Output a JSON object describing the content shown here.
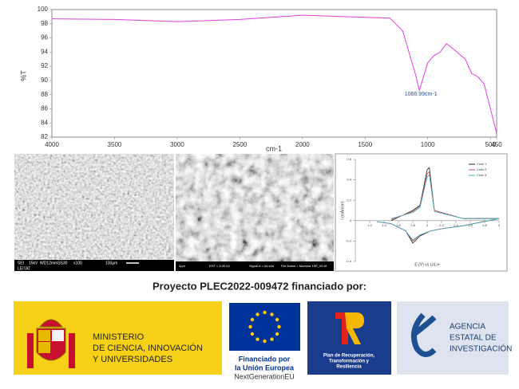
{
  "chart_data": [
    {
      "type": "line",
      "xlabel": "cm-1",
      "ylabel": "%T",
      "annotation": "1066.99cm-1",
      "x": [
        4000,
        3500,
        3000,
        2500,
        2000,
        1500,
        1300,
        1200,
        1100,
        1067,
        1000,
        950,
        900,
        850,
        800,
        700,
        650,
        600,
        550,
        500,
        450
      ],
      "series": [
        {
          "color": "#e040e0",
          "values": [
            98.7,
            98.6,
            98.3,
            98.6,
            99.2,
            98.9,
            98.8,
            97,
            91,
            88.6,
            92.5,
            93.5,
            94,
            95.2,
            94.5,
            93,
            91,
            90.5,
            89.5,
            86,
            82.5
          ]
        }
      ],
      "xlim": [
        4000,
        450
      ],
      "xticks": [
        4000,
        3500,
        3000,
        2500,
        2000,
        1500,
        1000,
        500,
        450
      ],
      "ylim": [
        82,
        100
      ],
      "yticks": [
        82,
        84,
        86,
        88,
        90,
        92,
        94,
        96,
        98,
        100
      ]
    },
    {
      "type": "line",
      "xlabel": "E (V) vs Li/Li+",
      "ylabel": "I (mA/cm²)",
      "x": [
        1.5,
        1.8,
        1.9,
        2.0,
        2.03,
        2.1,
        2.5,
        3.0,
        2.5,
        2.2,
        2.05,
        1.9,
        1.8,
        1.7,
        1.5,
        1.3
      ],
      "series": [
        {
          "name": "Ciclo 1",
          "color": "#222222",
          "values": [
            0,
            0.1,
            0.15,
            0.5,
            0.52,
            0.1,
            0.02,
            0.02,
            -0.05,
            -0.08,
            -0.1,
            -0.15,
            -0.22,
            -0.1,
            -0.03,
            -0.01
          ]
        },
        {
          "name": "Ciclo 2",
          "color": "#c0504d",
          "values": [
            0.01,
            0.09,
            0.14,
            0.46,
            0.48,
            0.1,
            0.02,
            0.02,
            -0.05,
            -0.08,
            -0.1,
            -0.14,
            -0.2,
            -0.1,
            -0.03,
            -0.01
          ]
        },
        {
          "name": "Ciclo 3",
          "color": "#4bacc6",
          "values": [
            0.02,
            0.08,
            0.13,
            0.43,
            0.45,
            0.09,
            0.02,
            0.02,
            -0.05,
            -0.08,
            -0.1,
            -0.14,
            -0.19,
            -0.1,
            -0.03,
            -0.01
          ]
        }
      ],
      "xlim": [
        1,
        3
      ],
      "xticks": [
        1.2,
        1.4,
        1.6,
        1.8,
        2,
        2.2,
        2.4,
        2.6,
        2.8,
        3
      ],
      "ylim": [
        -0.4,
        0.6
      ],
      "yticks": [
        -0.4,
        -0.2,
        0,
        0.2,
        0.4,
        0.6
      ]
    }
  ],
  "sem": {
    "left": [
      "SEI",
      "15kV",
      "WD12mmSS30",
      "x100",
      "100µm",
      "LEITAT"
    ],
    "right": [
      "2µm",
      "EHT = 5.00 kV",
      "Signal A = InLens",
      "File Name = Muestra 1SE_05.tif"
    ]
  },
  "caption": "Proyecto PLEC2022-009472 financiado por:",
  "logos": {
    "ministry": [
      "MINISTERIO",
      "DE CIENCIA, INNOVACIÓN",
      "Y UNIVERSIDADES"
    ],
    "eu": [
      "Financiado por",
      "la Unión Europea",
      "NextGenerationEU"
    ],
    "prtr": [
      "Plan de Recuperación,",
      "Transformación y",
      "Resiliencia"
    ],
    "aei": [
      "AGENCIA",
      "ESTATAL DE",
      "INVESTIGACIÓN"
    ]
  }
}
